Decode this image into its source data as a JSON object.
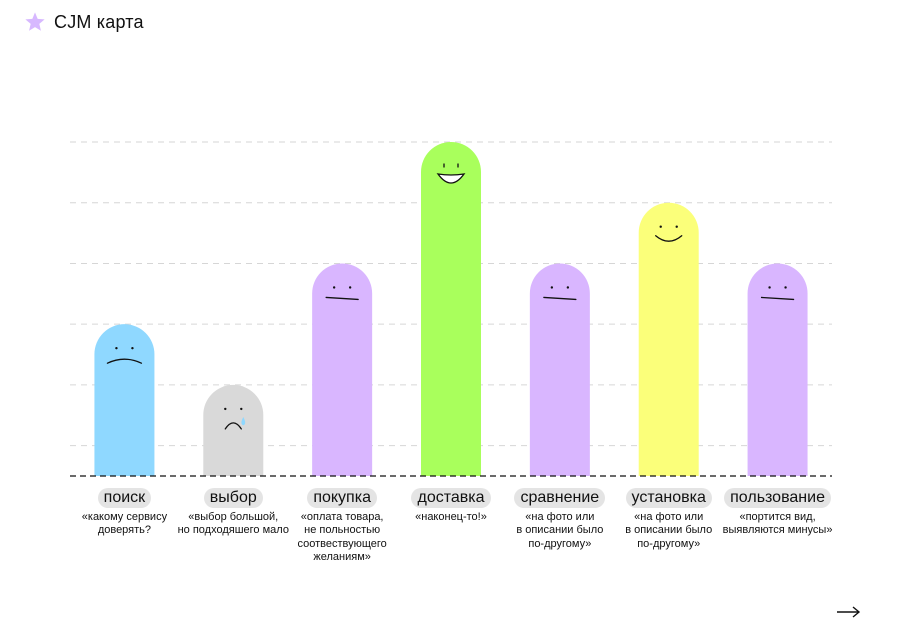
{
  "title": "CJM карта",
  "accent_color": "#d7b8ff",
  "icons": {
    "title_icon": "star-icon",
    "next_icon": "arrow-right-icon"
  },
  "chart_data": {
    "type": "bar",
    "ylim": [
      0,
      6
    ],
    "grid": true,
    "categories": [
      "поиск",
      "выбор",
      "покупка",
      "доставка",
      "сравнение",
      "установка",
      "пользование"
    ],
    "values": [
      2.5,
      1.5,
      3.5,
      5.5,
      3.5,
      4.5,
      3.5
    ],
    "colors": [
      "#8fd8ff",
      "#d9d9d9",
      "#d9b6ff",
      "#a9ff5c",
      "#d9b6ff",
      "#fbff7a",
      "#d9b6ff"
    ],
    "moods": [
      "sad",
      "crying",
      "neutral",
      "laughing",
      "neutral",
      "happy",
      "neutral"
    ],
    "quotes": [
      "«какому сервису\nдоверять?",
      "«выбор большой,\nно подходяшего мало",
      "«оплата товара,\nне польностью\nсоотвествующего\nжеланиям»",
      "«наконец-то!»",
      "«на фото или\nв описании было\nпо-другому»",
      "«на фото или\nв описании было\nпо-другому»",
      "«портится вид,\nвыявляются минусы»"
    ]
  }
}
